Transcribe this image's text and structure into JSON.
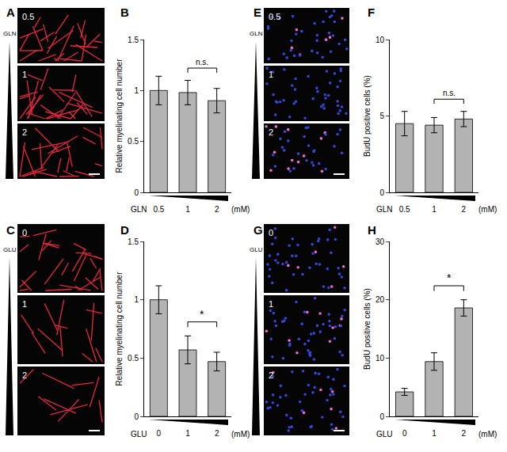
{
  "image_panels": [
    {
      "panel": "A",
      "gradient_label": "GLN",
      "labels": [
        "0.5",
        "1",
        "2"
      ]
    },
    {
      "panel": "C",
      "gradient_label": "GLU",
      "labels": [
        "0",
        "1",
        "2"
      ]
    },
    {
      "panel": "E",
      "gradient_label": "GLN",
      "labels": [
        "0.5",
        "1",
        "2"
      ]
    },
    {
      "panel": "G",
      "gradient_label": "GLU",
      "labels": [
        "0",
        "1",
        "2"
      ]
    }
  ],
  "chart_data": [
    {
      "panel": "B",
      "type": "bar",
      "categories": [
        "0.5",
        "1",
        "2"
      ],
      "values": [
        1.0,
        0.98,
        0.9
      ],
      "errors": [
        0.14,
        0.12,
        0.12
      ],
      "x_label": "GLN",
      "x_unit": "(mM)",
      "y_label": "Relative myelinating cell number",
      "color": "#b3b3b3",
      "ylim": [
        0,
        1.5
      ],
      "yticks": [
        0,
        0.5,
        1,
        1.5
      ],
      "grid": false,
      "significance": {
        "text": "n.s.",
        "between": [
          "1",
          "2"
        ]
      }
    },
    {
      "panel": "D",
      "type": "bar",
      "categories": [
        "0",
        "1",
        "2"
      ],
      "values": [
        1.0,
        0.57,
        0.47
      ],
      "errors": [
        0.12,
        0.12,
        0.08
      ],
      "x_label": "GLU",
      "x_unit": "(mM)",
      "y_label": "Relative myelinating cell number",
      "color": "#b3b3b3",
      "ylim": [
        0,
        1.5
      ],
      "yticks": [
        0,
        0.5,
        1,
        1.5
      ],
      "grid": false,
      "significance": {
        "text": "*",
        "between": [
          "1",
          "2"
        ]
      }
    },
    {
      "panel": "F",
      "type": "bar",
      "categories": [
        "0.5",
        "1",
        "2"
      ],
      "values": [
        4.5,
        4.4,
        4.8
      ],
      "errors": [
        0.8,
        0.5,
        0.5
      ],
      "x_label": "GLN",
      "x_unit": "(mM)",
      "y_label": "BudU positive cells (%)",
      "color": "#b3b3b3",
      "ylim": [
        0,
        10
      ],
      "yticks": [
        0,
        5,
        10
      ],
      "grid": false,
      "significance": {
        "text": "n.s.",
        "between": [
          "1",
          "2"
        ]
      }
    },
    {
      "panel": "H",
      "type": "bar",
      "categories": [
        "0",
        "1",
        "2"
      ],
      "values": [
        4.2,
        9.4,
        18.6
      ],
      "errors": [
        0.6,
        1.5,
        1.4
      ],
      "x_label": "GLU",
      "x_unit": "(mM)",
      "y_label": "BudU positive cells (%)",
      "color": "#b3b3b3",
      "ylim": [
        0,
        30
      ],
      "yticks": [
        0,
        10,
        20,
        30
      ],
      "grid": false,
      "significance": {
        "text": "*",
        "between": [
          "1",
          "2"
        ]
      }
    }
  ]
}
